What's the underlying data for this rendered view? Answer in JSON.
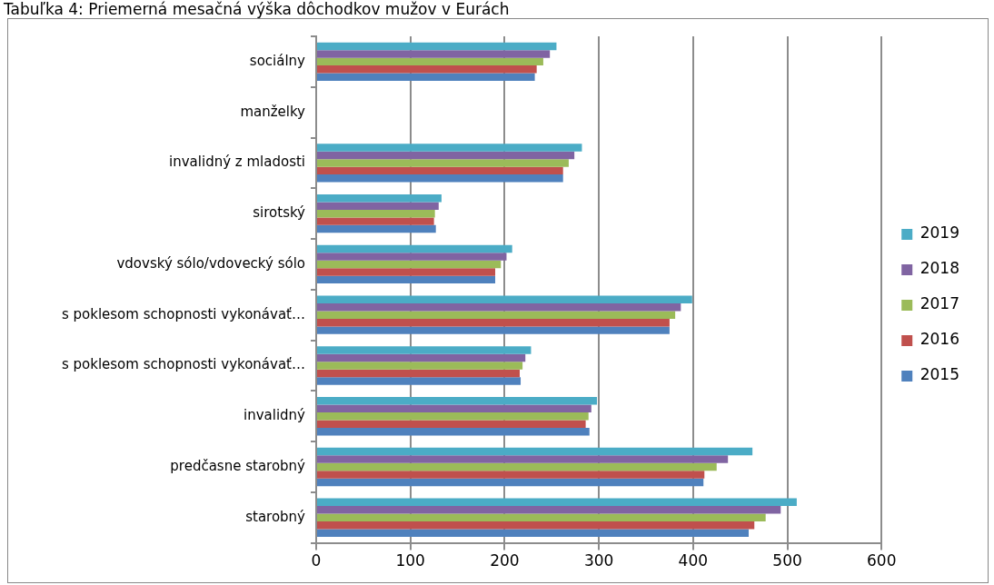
{
  "chart_data": {
    "type": "bar",
    "orientation": "horizontal",
    "title": "Tabuľka 4: Priemerná mesačná výška dôchodkov mužov v Eurách",
    "categories": [
      "sociálny",
      "manželky",
      "invalidný z mladosti",
      "sirotský",
      "vdovský sólo/vdovecký sólo",
      "s poklesom schopnosti vykonávať…",
      "s poklesom schopnosti vykonávať…",
      "invalidný",
      "predčasne starobný",
      "starobný"
    ],
    "series": [
      {
        "name": "2019",
        "color": "#4bacc6",
        "values": [
          255,
          null,
          282,
          133,
          208,
          399,
          228,
          298,
          463,
          510
        ]
      },
      {
        "name": "2018",
        "color": "#8064a2",
        "values": [
          248,
          null,
          274,
          130,
          202,
          387,
          222,
          292,
          437,
          493
        ]
      },
      {
        "name": "2017",
        "color": "#9bbb59",
        "values": [
          241,
          null,
          268,
          126,
          196,
          381,
          219,
          289,
          425,
          477
        ]
      },
      {
        "name": "2016",
        "color": "#c0504d",
        "values": [
          234,
          null,
          262,
          125,
          190,
          375,
          216,
          286,
          412,
          465
        ]
      },
      {
        "name": "2015",
        "color": "#4f81bd",
        "values": [
          232,
          null,
          262,
          127,
          190,
          375,
          217,
          290,
          411,
          459
        ]
      }
    ],
    "xlim": [
      0,
      600
    ],
    "xticks": [
      0,
      100,
      200,
      300,
      400,
      500,
      600
    ],
    "grid": "x",
    "legend": "right"
  }
}
